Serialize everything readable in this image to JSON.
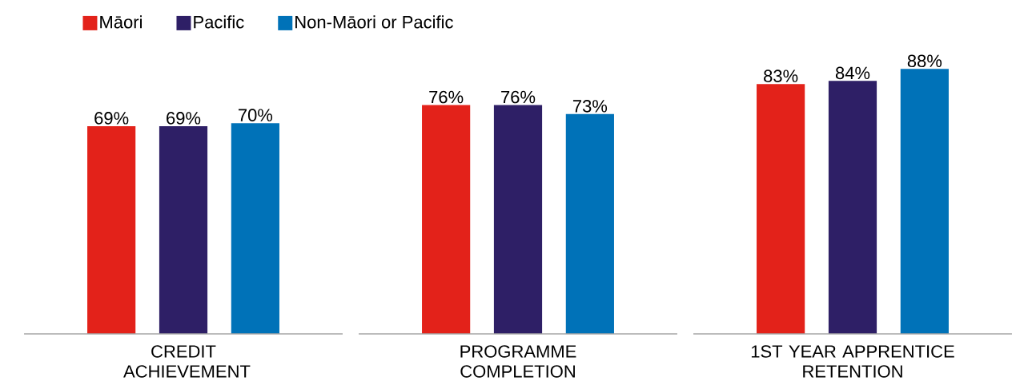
{
  "chart_data": {
    "type": "bar",
    "categories": [
      "CREDIT ACHIEVEMENT",
      "PROGRAMME COMPLETION",
      "1ST YEAR APPRENTICE RETENTION"
    ],
    "series": [
      {
        "name": "Māori",
        "color": "#e3221a",
        "values": [
          69,
          76,
          83
        ],
        "value_labels": [
          "69%",
          "76%",
          "83%"
        ]
      },
      {
        "name": "Pacific",
        "color": "#2e1f66",
        "values": [
          69,
          76,
          84
        ],
        "value_labels": [
          "69%",
          "76%",
          "84%"
        ]
      },
      {
        "name": "Non-Māori or Pacific",
        "color": "#0072b8",
        "values": [
          70,
          73,
          88
        ],
        "value_labels": [
          "70%",
          "73%",
          "88%"
        ]
      }
    ],
    "legend": "top left"
  }
}
